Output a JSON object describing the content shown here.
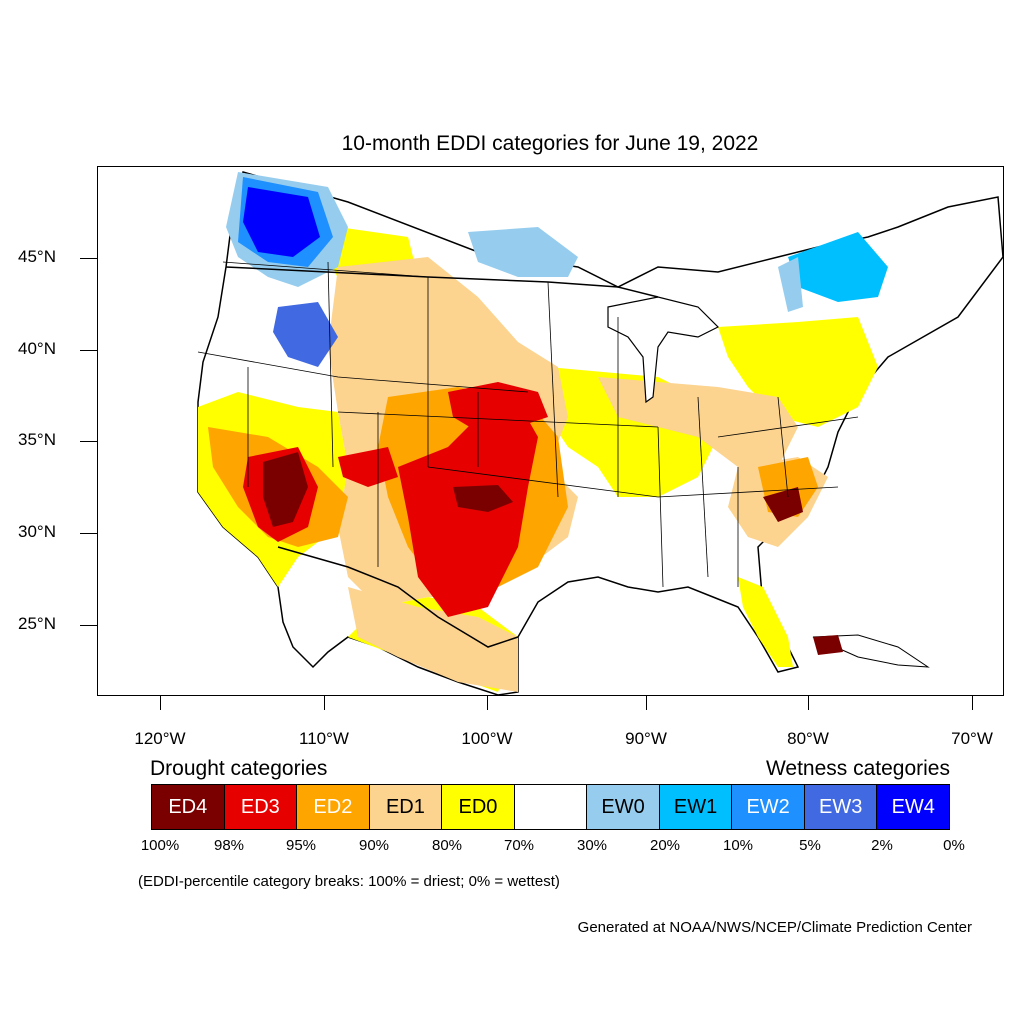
{
  "title": "10-month EDDI categories for June 19, 2022",
  "latitude_labels": [
    "45°N",
    "40°N",
    "35°N",
    "30°N",
    "25°N"
  ],
  "longitude_labels": [
    "120°W",
    "110°W",
    "100°W",
    "90°W",
    "80°W",
    "70°W"
  ],
  "legend": {
    "drought_heading": "Drought categories",
    "wetness_heading": "Wetness categories",
    "categories": [
      {
        "label": "ED4",
        "color": "#7a0000",
        "text_color": "#ffffff"
      },
      {
        "label": "ED3",
        "color": "#e60000",
        "text_color": "#ffffff"
      },
      {
        "label": "ED2",
        "color": "#ffa500",
        "text_color": "#ffffff"
      },
      {
        "label": "ED1",
        "color": "#fcd38f",
        "text_color": "#000000"
      },
      {
        "label": "ED0",
        "color": "#ffff00",
        "text_color": "#000000"
      },
      {
        "label": "",
        "color": "#ffffff",
        "text_color": "#000000"
      },
      {
        "label": "EW0",
        "color": "#96cdee",
        "text_color": "#000000"
      },
      {
        "label": "EW1",
        "color": "#00bfff",
        "text_color": "#000000"
      },
      {
        "label": "EW2",
        "color": "#1e90ff",
        "text_color": "#ffffff"
      },
      {
        "label": "EW3",
        "color": "#4169e1",
        "text_color": "#ffffff"
      },
      {
        "label": "EW4",
        "color": "#0000ff",
        "text_color": "#ffffff"
      }
    ],
    "breaks": [
      "100%",
      "98%",
      "95%",
      "90%",
      "80%",
      "70%",
      "30%",
      "20%",
      "10%",
      "5%",
      "2%",
      "0%"
    ]
  },
  "footnote": "(EDDI-percentile category breaks: 100% = driest; 0% = wettest)",
  "credit": "Generated at NOAA/NWS/NCEP/Climate Prediction Center"
}
